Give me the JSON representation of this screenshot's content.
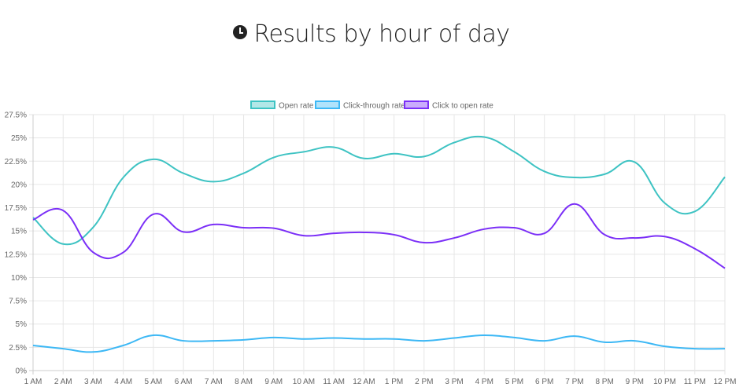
{
  "title": "Results by hour of day",
  "title_icon": "clock-icon",
  "chart_data": {
    "type": "line",
    "title": "Results by hour of day",
    "categories": [
      "1 AM",
      "2 AM",
      "3 AM",
      "4 AM",
      "5 AM",
      "6 AM",
      "7 AM",
      "8 AM",
      "9 AM",
      "10 AM",
      "11 AM",
      "12 AM",
      "1 PM",
      "2 PM",
      "3 PM",
      "4 PM",
      "5 PM",
      "6 PM",
      "7 PM",
      "8 PM",
      "9 PM",
      "10 PM",
      "11 PM",
      "12 PM"
    ],
    "ylim": [
      0,
      27.5
    ],
    "yticks": [
      "0%",
      "2.5%",
      "5%",
      "7.5%",
      "10%",
      "12.5%",
      "15%",
      "17.5%",
      "20%",
      "22.5%",
      "25%",
      "27.5%"
    ],
    "grid": true,
    "legend": "top",
    "series": [
      {
        "name": "Open rate",
        "color": "#3ec3c3",
        "values": [
          16.45,
          13.6,
          15.4,
          20.75,
          22.7,
          21.2,
          20.3,
          21.2,
          22.9,
          23.5,
          24.0,
          22.8,
          23.3,
          23.0,
          24.5,
          25.1,
          23.5,
          21.4,
          20.75,
          21.1,
          22.4,
          18.0,
          17.1,
          20.8
        ]
      },
      {
        "name": "Click-through rate",
        "color": "#3db8f5",
        "values": [
          2.7,
          2.35,
          2.0,
          2.7,
          3.8,
          3.2,
          3.2,
          3.3,
          3.55,
          3.4,
          3.5,
          3.4,
          3.4,
          3.2,
          3.5,
          3.8,
          3.55,
          3.2,
          3.7,
          3.05,
          3.2,
          2.6,
          2.35,
          2.35
        ]
      },
      {
        "name": "Click to open rate",
        "color": "#7b2ff7",
        "values": [
          16.2,
          17.2,
          12.7,
          12.7,
          16.8,
          14.9,
          15.7,
          15.35,
          15.3,
          14.5,
          14.75,
          14.85,
          14.6,
          13.75,
          14.25,
          15.2,
          15.35,
          14.75,
          17.9,
          14.6,
          14.25,
          14.4,
          13.1,
          11.0
        ]
      }
    ]
  }
}
